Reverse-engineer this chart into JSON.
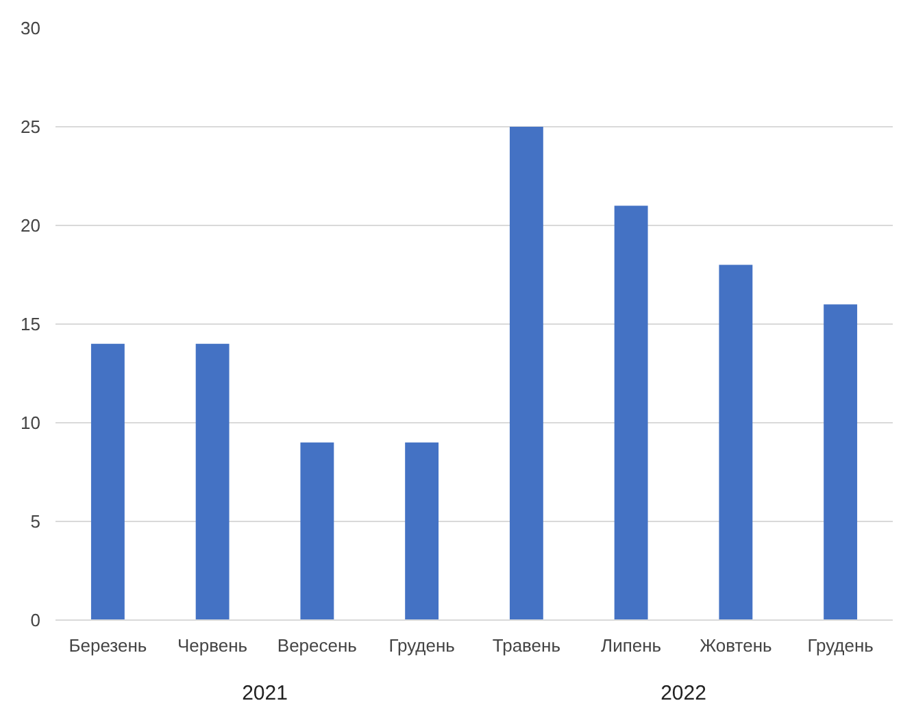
{
  "chart_data": {
    "type": "bar",
    "categories": [
      "Березень",
      "Червень",
      "Вересень",
      "Грудень",
      "Травень",
      "Липень",
      "Жовтень",
      "Грудень"
    ],
    "values": [
      14,
      14,
      9,
      9,
      25,
      21,
      18,
      16
    ],
    "color": "#4472c4",
    "annotations": [
      "2021",
      "2022"
    ],
    "ylim": [
      0,
      30
    ],
    "yticks": [
      0,
      5,
      10,
      15,
      20,
      25,
      30
    ],
    "grid": "y"
  }
}
